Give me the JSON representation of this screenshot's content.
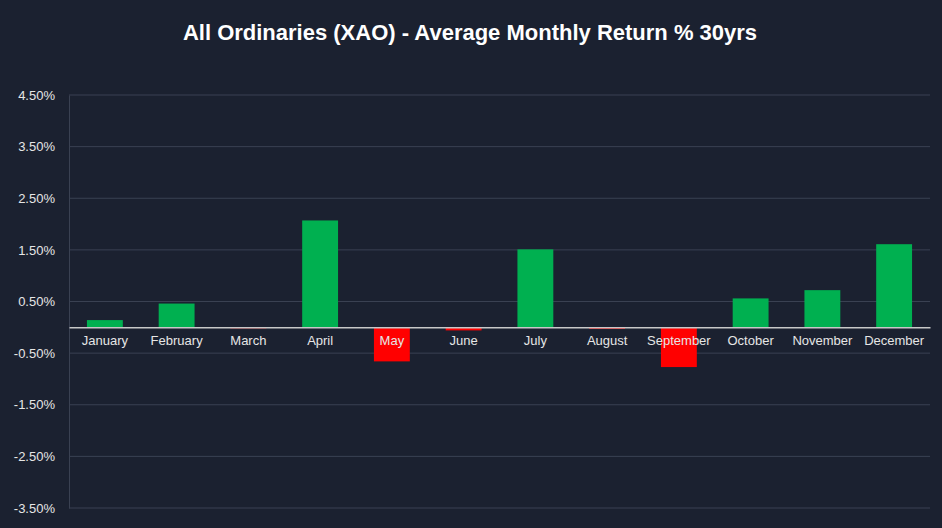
{
  "chart_data": {
    "type": "bar",
    "title": "All Ordinaries (XAO) - Average Monthly Return % 30yrs",
    "categories": [
      "January",
      "February",
      "March",
      "April",
      "May",
      "June",
      "July",
      "August",
      "September",
      "October",
      "November",
      "December"
    ],
    "values": [
      0.14,
      0.46,
      -0.02,
      2.07,
      -0.66,
      -0.06,
      1.51,
      -0.03,
      -0.77,
      0.56,
      0.72,
      1.61
    ],
    "colors": [
      "#00b050",
      "#00b050",
      "#ff0000",
      "#00b050",
      "#ff0000",
      "#ff0000",
      "#00b050",
      "#ff0000",
      "#ff0000",
      "#00b050",
      "#00b050",
      "#00b050"
    ],
    "ylim": [
      -3.5,
      4.5
    ],
    "yticks": [
      {
        "value": -3.5,
        "label": "-3.50%"
      },
      {
        "value": -2.5,
        "label": "-2.50%"
      },
      {
        "value": -1.5,
        "label": "-1.50%"
      },
      {
        "value": -0.5,
        "label": "-0.50%"
      },
      {
        "value": 0.5,
        "label": "0.50%"
      },
      {
        "value": 1.5,
        "label": "1.50%"
      },
      {
        "value": 2.5,
        "label": "2.50%"
      },
      {
        "value": 3.5,
        "label": "3.50%"
      },
      {
        "value": 4.5,
        "label": "4.50%"
      }
    ],
    "grid": true
  }
}
